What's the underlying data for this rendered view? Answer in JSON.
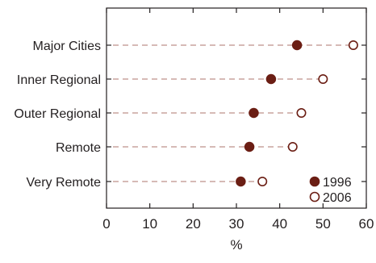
{
  "chart_data": {
    "type": "scatter",
    "subtype": "dot-plot",
    "title": "",
    "xlabel": "%",
    "ylabel": "",
    "xlim": [
      0,
      60
    ],
    "x_ticks": [
      0,
      10,
      20,
      30,
      40,
      50,
      60
    ],
    "grid": false,
    "legend_position": "bottom-right",
    "categories": [
      "Major Cities",
      "Inner Regional",
      "Outer Regional",
      "Remote",
      "Very Remote"
    ],
    "series": [
      {
        "name": "1996",
        "values": [
          44,
          38,
          34,
          33,
          31
        ],
        "marker": "filled-circle",
        "color": "#6b1e14"
      },
      {
        "name": "2006",
        "values": [
          57,
          50,
          45,
          43,
          36
        ],
        "marker": "open-circle",
        "color": "#6b1e14"
      }
    ],
    "connector_style": "dashed",
    "connector_color": "#c9a49e",
    "axis_color": "#231f20"
  }
}
